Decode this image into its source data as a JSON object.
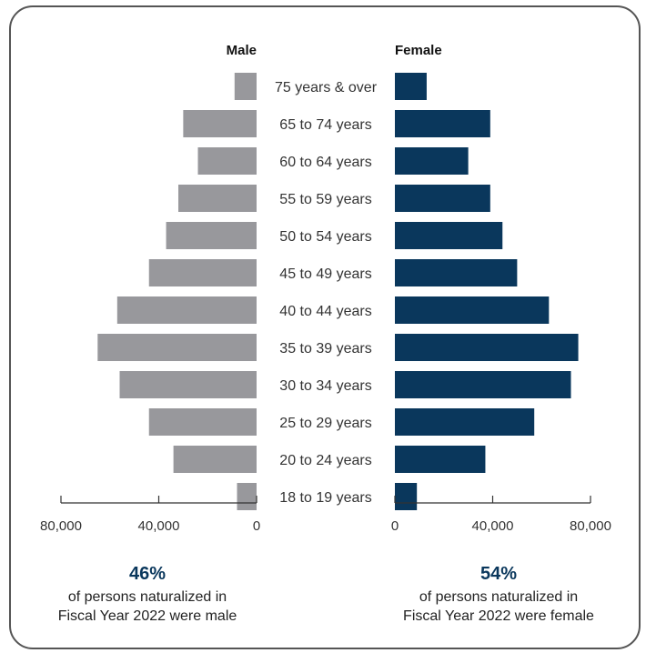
{
  "colors": {
    "male": "#98989c",
    "female": "#0a375c",
    "accent_text": "#0a375c"
  },
  "chart_data": {
    "type": "bar",
    "layout": "population-pyramid",
    "categories": [
      "75 years & over",
      "65 to 74 years",
      "60 to 64 years",
      "55 to 59 years",
      "50 to 54 years",
      "45 to 49 years",
      "40 to 44 years",
      "35 to 39 years",
      "30 to 34 years",
      "25 to 29 years",
      "20 to 24 years",
      "18 to 19 years"
    ],
    "series": [
      {
        "name": "Male",
        "values": [
          9000,
          30000,
          24000,
          32000,
          37000,
          44000,
          57000,
          65000,
          56000,
          44000,
          34000,
          8000
        ]
      },
      {
        "name": "Female",
        "values": [
          13000,
          39000,
          30000,
          39000,
          44000,
          50000,
          63000,
          75000,
          72000,
          57000,
          37000,
          9000
        ]
      }
    ],
    "xlim": [
      0,
      80000
    ],
    "ticks": [
      {
        "value": 80000,
        "label": "80,000"
      },
      {
        "value": 40000,
        "label": "40,000"
      },
      {
        "value": 0,
        "label": "0"
      }
    ]
  },
  "summary": {
    "male": {
      "percent": "46%",
      "line1": "of persons naturalized in",
      "line2": "Fiscal Year 2022 were male"
    },
    "female": {
      "percent": "54%",
      "line1": "of persons naturalized in",
      "line2": "Fiscal Year 2022 were female"
    }
  }
}
